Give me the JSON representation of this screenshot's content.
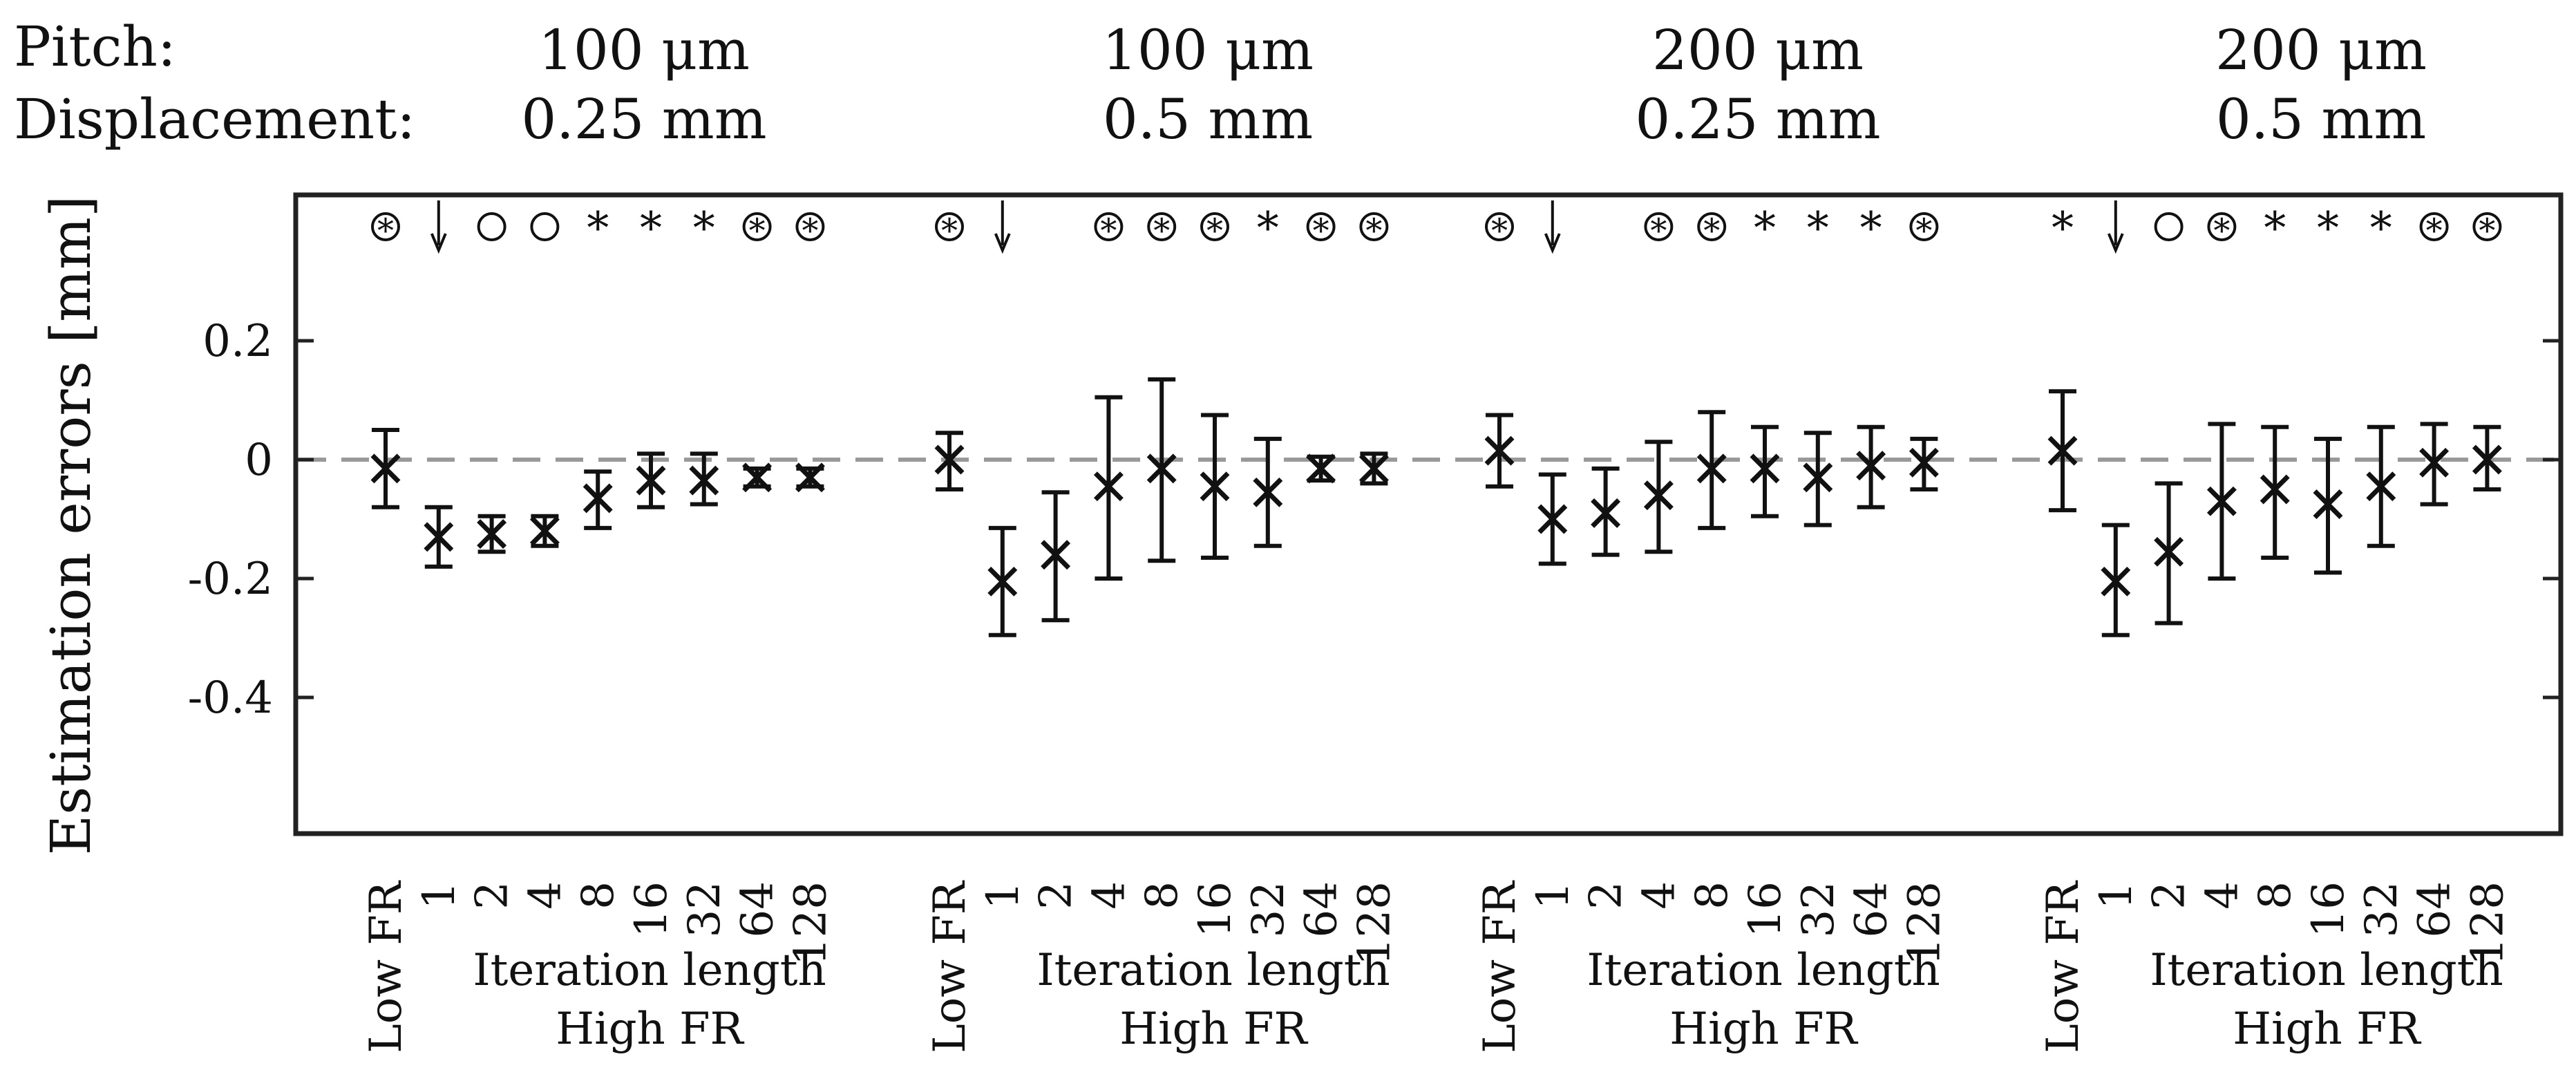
{
  "header": {
    "pitch_label": "Pitch:",
    "displacement_label": "Displacement:"
  },
  "chart_data": {
    "type": "errorbar",
    "ylabel": "Estimation errors [mm]",
    "ylim": [
      -0.6,
      0.45
    ],
    "yticks": [
      0.2,
      0,
      -0.2,
      -0.4
    ],
    "ytick_labels": [
      "0.2",
      "0",
      "-0.2",
      "-0.4"
    ],
    "reference_line": 0,
    "categories": [
      "Low FR",
      "1",
      "2",
      "4",
      "8",
      "16",
      "32",
      "64",
      "128"
    ],
    "axis_label_line1": "Iteration length",
    "axis_label_line2": "High FR",
    "groups": [
      {
        "pitch": "100 μm",
        "displacement": "0.25 mm",
        "mean": [
          -0.015,
          -0.13,
          -0.125,
          -0.12,
          -0.065,
          -0.035,
          -0.035,
          -0.03,
          -0.03
        ],
        "lower": [
          -0.08,
          -0.18,
          -0.155,
          -0.145,
          -0.115,
          -0.08,
          -0.075,
          -0.045,
          -0.045
        ],
        "upper": [
          0.05,
          -0.08,
          -0.095,
          -0.095,
          -0.02,
          0.01,
          0.01,
          -0.015,
          -0.015
        ],
        "markers": [
          "⊛",
          "↓",
          "○",
          "○",
          "*",
          "*",
          "*",
          "⊛",
          "⊛"
        ]
      },
      {
        "pitch": "100 μm",
        "displacement": "0.5 mm",
        "mean": [
          0.0,
          -0.205,
          -0.16,
          -0.045,
          -0.015,
          -0.045,
          -0.055,
          -0.015,
          -0.015
        ],
        "lower": [
          -0.05,
          -0.295,
          -0.27,
          -0.2,
          -0.17,
          -0.165,
          -0.145,
          -0.035,
          -0.04
        ],
        "upper": [
          0.045,
          -0.115,
          -0.055,
          0.105,
          0.135,
          0.075,
          0.035,
          0.005,
          0.01
        ],
        "markers": [
          "⊛",
          "↓",
          "",
          "⊛",
          "⊛",
          "⊛",
          "*",
          "⊛",
          "⊛"
        ]
      },
      {
        "pitch": "200 μm",
        "displacement": "0.25 mm",
        "mean": [
          0.015,
          -0.1,
          -0.09,
          -0.06,
          -0.015,
          -0.015,
          -0.03,
          -0.01,
          -0.005
        ],
        "lower": [
          -0.045,
          -0.175,
          -0.16,
          -0.155,
          -0.115,
          -0.095,
          -0.11,
          -0.08,
          -0.05
        ],
        "upper": [
          0.075,
          -0.025,
          -0.015,
          0.03,
          0.08,
          0.055,
          0.045,
          0.055,
          0.035
        ],
        "markers": [
          "⊛",
          "↓",
          "",
          "⊛",
          "⊛",
          "*",
          "*",
          "*",
          "⊛"
        ]
      },
      {
        "pitch": "200 μm",
        "displacement": "0.5 mm",
        "mean": [
          0.015,
          -0.205,
          -0.155,
          -0.07,
          -0.05,
          -0.075,
          -0.045,
          -0.005,
          0.0
        ],
        "lower": [
          -0.085,
          -0.295,
          -0.275,
          -0.2,
          -0.165,
          -0.19,
          -0.145,
          -0.075,
          -0.05
        ],
        "upper": [
          0.115,
          -0.11,
          -0.04,
          0.06,
          0.055,
          0.035,
          0.055,
          0.06,
          0.055
        ],
        "markers": [
          "*",
          "↓",
          "○",
          "⊛",
          "*",
          "*",
          "*",
          "⊛",
          "⊛"
        ]
      }
    ]
  }
}
